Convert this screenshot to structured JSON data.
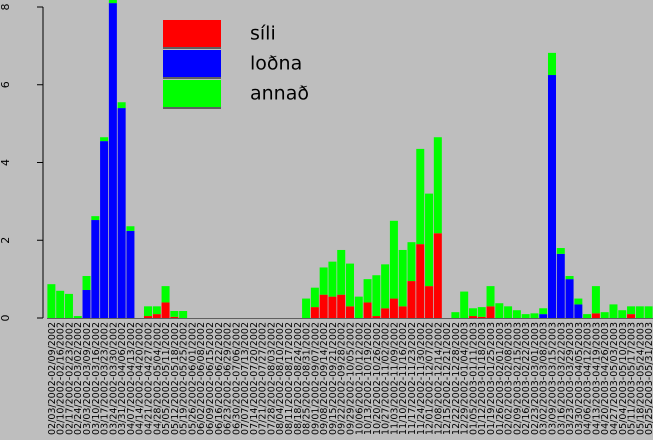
{
  "chart_data": {
    "type": "stacked_bar",
    "categories": [
      "02/03/2002-02/09/2002",
      "02/10/2002-02/16/2002",
      "02/17/2002-02/23/2002",
      "02/24/2002-03/02/2002",
      "03/03/2002-03/09/2002",
      "03/10/2002-03/16/2002",
      "03/17/2002-03/23/2002",
      "03/24/2002-03/30/2002",
      "03/31/2002-04/06/2002",
      "04/07/2002-04/13/2002",
      "04/14/2002-04/20/2002",
      "04/21/2002-04/27/2002",
      "04/28/2002-05/04/2002",
      "05/05/2002-05/11/2002",
      "05/12/2002-05/18/2002",
      "05/19/2002-05/25/2002",
      "05/26/2002-06/01/2002",
      "06/02/2002-06/08/2002",
      "06/09/2002-06/15/2002",
      "06/16/2002-06/22/2002",
      "06/23/2002-06/29/2002",
      "06/30/2002-07/06/2002",
      "07/07/2002-07/13/2002",
      "07/14/2002-07/20/2002",
      "07/21/2002-07/27/2002",
      "07/28/2002-08/03/2002",
      "08/04/2002-08/10/2002",
      "08/11/2002-08/17/2002",
      "08/18/2002-08/24/2002",
      "08/25/2002-08/31/2002",
      "09/01/2002-09/07/2002",
      "09/08/2002-09/14/2002",
      "09/15/2002-09/21/2002",
      "09/22/2002-09/28/2002",
      "09/29/2002-10/05/2002",
      "10/06/2002-10/12/2002",
      "10/13/2002-10/19/2002",
      "10/20/2002-10/26/2002",
      "10/27/2002-11/02/2002",
      "11/03/2002-11/09/2002",
      "11/10/2002-11/16/2002",
      "11/17/2002-11/23/2002",
      "11/24/2002-11/30/2002",
      "12/01/2002-12/07/2002",
      "12/08/2002-12/14/2002",
      "12/15/2002-12/21/2002",
      "12/22/2002-12/28/2002",
      "12/29/2002-01/04/2003",
      "01/05/2003-01/11/2003",
      "01/12/2003-01/18/2003",
      "01/19/2003-01/25/2003",
      "01/26/2003-02/01/2003",
      "02/02/2003-02/08/2003",
      "02/09/2003-02/15/2003",
      "02/16/2003-02/22/2003",
      "02/23/2003-03/01/2003",
      "03/02/2003-03/08/2003",
      "03/09/2003-03/15/2003",
      "03/16/2003-03/22/2003",
      "03/23/2003-03/29/2003",
      "03/30/2003-04/05/2003",
      "04/06/2003-04/12/2003",
      "04/13/2003-04/19/2003",
      "04/20/2003-04/26/2003",
      "04/27/2003-05/03/2003",
      "05/04/2003-05/10/2003",
      "05/11/2003-05/17/2003",
      "05/18/2003-05/24/2003",
      "05/25/2003-05/31/2003"
    ],
    "series": [
      {
        "name": "síli",
        "color": "#ff0000",
        "values": [
          0,
          0,
          0,
          0,
          0,
          0,
          0,
          0,
          0,
          0,
          0,
          0.05,
          0.1,
          0.4,
          0.03,
          0,
          0,
          0,
          0,
          0,
          0,
          0,
          0,
          0,
          0,
          0,
          0,
          0,
          0,
          0,
          0.28,
          0.6,
          0.55,
          0.6,
          0.3,
          0,
          0.4,
          0.05,
          0.25,
          0.5,
          0.3,
          0.95,
          1.9,
          0.82,
          2.18,
          0,
          0,
          0,
          0.05,
          0.03,
          0.3,
          0,
          0,
          0,
          0,
          0,
          0,
          0,
          0,
          0,
          0,
          0,
          0.12,
          0,
          0,
          0,
          0.1,
          0,
          0
        ]
      },
      {
        "name": "loðna",
        "color": "#0000ff",
        "values": [
          0,
          0,
          0,
          0,
          0.72,
          2.52,
          4.55,
          8.1,
          5.4,
          2.24,
          0,
          0,
          0,
          0,
          0,
          0,
          0,
          0,
          0,
          0,
          0,
          0,
          0,
          0,
          0,
          0,
          0,
          0,
          0,
          0,
          0,
          0,
          0,
          0,
          0,
          0,
          0,
          0,
          0,
          0,
          0,
          0,
          0,
          0,
          0,
          0,
          0,
          0,
          0,
          0,
          0,
          0,
          0,
          0,
          0,
          0,
          0.1,
          6.25,
          1.65,
          1.0,
          0.35,
          0,
          0,
          0,
          0,
          0,
          0,
          0,
          0
        ]
      },
      {
        "name": "annað",
        "color": "#00ff00",
        "values": [
          0.87,
          0.7,
          0.62,
          0.05,
          0.36,
          0.1,
          0.1,
          0.08,
          0.15,
          0.12,
          0,
          0.25,
          0.2,
          0.42,
          0.15,
          0.18,
          0,
          0,
          0,
          0,
          0,
          0,
          0,
          0,
          0,
          0,
          0,
          0,
          0,
          0.5,
          0.5,
          0.7,
          0.9,
          1.15,
          1.1,
          0.55,
          0.6,
          1.05,
          1.13,
          2.0,
          1.45,
          1.0,
          2.45,
          2.38,
          2.47,
          0,
          0.15,
          0.68,
          0.2,
          0.25,
          0.52,
          0.38,
          0.3,
          0.2,
          0.1,
          0.12,
          0.15,
          0.57,
          0.15,
          0.08,
          0.15,
          0.1,
          0.7,
          0.15,
          0.35,
          0.2,
          0.2,
          0.3,
          0.3
        ]
      }
    ],
    "ylim": [
      0,
      8.18
    ],
    "yticks": [
      0,
      2,
      4,
      6,
      8
    ]
  }
}
